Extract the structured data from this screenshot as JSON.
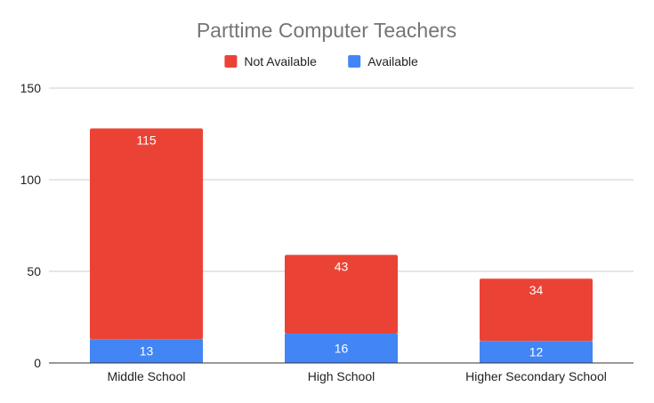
{
  "chart_data": {
    "type": "bar",
    "stacked": true,
    "title": "Parttime Computer Teachers",
    "xlabel": "",
    "ylabel": "",
    "categories": [
      "Middle School",
      "High School",
      "Higher Secondary School"
    ],
    "series": [
      {
        "name": "Available",
        "values": [
          13,
          16,
          12
        ],
        "color": "#4285f4"
      },
      {
        "name": "Not Available",
        "values": [
          115,
          43,
          34
        ],
        "color": "#ea4335"
      }
    ],
    "legend_order": [
      "Not Available",
      "Available"
    ],
    "legend_position": "top-center",
    "ylim": [
      0,
      150
    ],
    "yticks": [
      0,
      50,
      100,
      150
    ],
    "grid": true
  }
}
